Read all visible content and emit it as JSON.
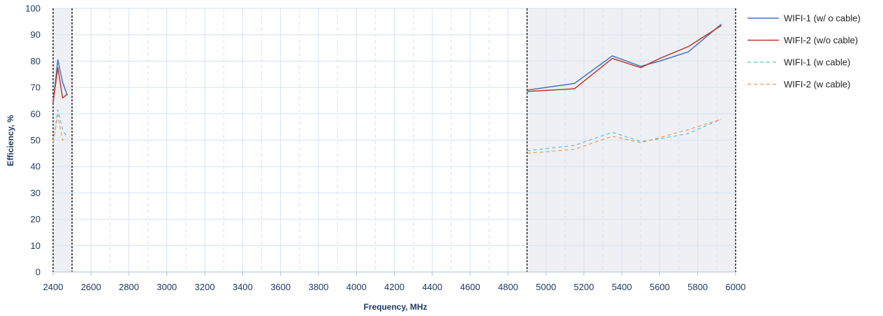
{
  "chart_data": {
    "type": "line",
    "title": "",
    "xlabel": "Frequency, MHz",
    "ylabel": "Efficiency, %",
    "xlim": [
      2400,
      6000
    ],
    "ylim": [
      0,
      100
    ],
    "xticks": [
      2400,
      2600,
      2800,
      3000,
      3200,
      3400,
      3600,
      3800,
      4000,
      4200,
      4400,
      4600,
      4800,
      5000,
      5200,
      5400,
      5600,
      5800,
      6000
    ],
    "yticks": [
      0,
      10,
      20,
      30,
      40,
      50,
      60,
      70,
      80,
      90,
      100
    ],
    "grid": true,
    "legend_position": "right",
    "highlight_bands": [
      [
        2400,
        2500
      ],
      [
        4900,
        6000
      ]
    ],
    "colors": {
      "wifi1": "#4472c4",
      "wifi2": "#c0392b",
      "wifi1_cable": "#5bc0de",
      "wifi2_cable": "#ed9a5a",
      "band_fill": "#eef0f4",
      "grid": "#d6e2f0",
      "axis_text": "#1f3864"
    },
    "series": [
      {
        "name": "WIFI-1 (w/ o cable)",
        "style": "solid",
        "segments": [
          [
            [
              2400,
              64
            ],
            [
              2425,
              80.5
            ],
            [
              2450,
              72
            ],
            [
              2475,
              67
            ]
          ],
          [
            [
              4900,
              69
            ],
            [
              5150,
              71.5
            ],
            [
              5350,
              82
            ],
            [
              5500,
              78
            ],
            [
              5600,
              80
            ],
            [
              5750,
              83.5
            ],
            [
              5925,
              94
            ]
          ]
        ]
      },
      {
        "name": "WIFI-2 (w/o cable)",
        "style": "solid",
        "segments": [
          [
            [
              2400,
              64.5
            ],
            [
              2425,
              77.5
            ],
            [
              2450,
              66
            ],
            [
              2475,
              67.5
            ]
          ],
          [
            [
              4900,
              68.5
            ],
            [
              5150,
              69.5
            ],
            [
              5350,
              81
            ],
            [
              5500,
              77.5
            ],
            [
              5600,
              81
            ],
            [
              5750,
              85.5
            ],
            [
              5925,
              93.5
            ]
          ]
        ]
      },
      {
        "name": "WIFI-1 (w cable)",
        "style": "dashed",
        "segments": [
          [
            [
              2400,
              49
            ],
            [
              2425,
              61.5
            ],
            [
              2450,
              54
            ],
            [
              2475,
              51
            ]
          ],
          [
            [
              4900,
              46
            ],
            [
              5150,
              48
            ],
            [
              5350,
              53
            ],
            [
              5500,
              49.5
            ],
            [
              5600,
              50.5
            ],
            [
              5750,
              52.5
            ],
            [
              5925,
              58
            ]
          ]
        ]
      },
      {
        "name": "WIFI-2 (w cable)",
        "style": "dashed",
        "segments": [
          [
            [
              2400,
              49.5
            ],
            [
              2425,
              59.5
            ],
            [
              2450,
              50
            ],
            [
              2475,
              50.5
            ]
          ],
          [
            [
              4900,
              45
            ],
            [
              5150,
              46.5
            ],
            [
              5350,
              51.5
            ],
            [
              5500,
              49
            ],
            [
              5600,
              51
            ],
            [
              5750,
              54
            ],
            [
              5925,
              58
            ]
          ]
        ]
      }
    ]
  }
}
